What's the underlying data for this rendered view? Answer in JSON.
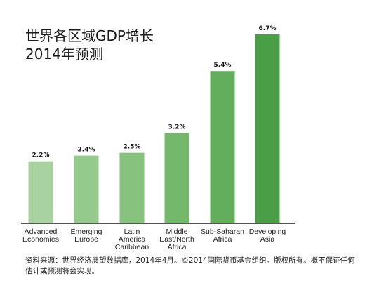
{
  "title_line1": "世界各区域GDP增长",
  "title_line2": "2014年预测",
  "source_note": "资料来源：世界经济展望数据库，2014年4月。©2014国际货币基金组织。版权所有。概不保证任何估计或预测将会实现。",
  "chart_data": {
    "type": "bar",
    "title": "世界各区域GDP增长 2014年预测",
    "categories": [
      [
        "Advanced",
        "Economies"
      ],
      [
        "Emerging",
        "Europe"
      ],
      [
        "Latin",
        "America",
        "Caribbean"
      ],
      [
        "Middle",
        "East/North",
        "Africa"
      ],
      [
        "Sub-Saharan",
        "Africa"
      ],
      [
        "Developing",
        "Asia"
      ]
    ],
    "values": [
      2.2,
      2.4,
      2.5,
      3.2,
      5.4,
      6.7
    ],
    "value_labels": [
      "2.2%",
      "2.4%",
      "2.5%",
      "3.2%",
      "5.4%",
      "6.7%"
    ],
    "colors": [
      "#a8d3a0",
      "#94ca8b",
      "#87c27e",
      "#74b86b",
      "#62ae5c",
      "#4a9e45"
    ],
    "ylim": [
      0,
      6.7
    ],
    "grid": false,
    "legend": "none"
  }
}
